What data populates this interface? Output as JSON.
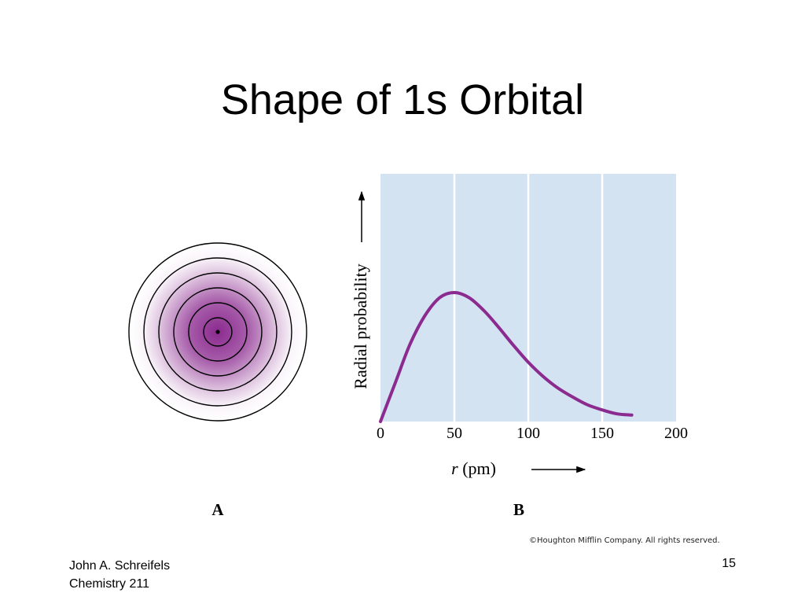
{
  "slide": {
    "title": "Shape of 1s Orbital",
    "copyright": "©Houghton Mifflin Company. All rights reserved.",
    "footer_author": "John A. Schreifels",
    "footer_course": "Chemistry 211",
    "page_number": "15"
  },
  "figure_a": {
    "label": "A",
    "color": "#8b2a8f"
  },
  "chart_data": {
    "type": "line",
    "panel_label": "B",
    "ylabel": "Radial probability",
    "xlabel_var": "r",
    "xlabel_unit": "(pm)",
    "xlim": [
      0,
      200
    ],
    "ylim": [
      0,
      1
    ],
    "xticks": [
      "0",
      "50",
      "100",
      "150",
      "200"
    ],
    "grid": true,
    "colors": {
      "plot_bg": "#d4e3f2",
      "curve": "#8b2a8f"
    },
    "series": [
      {
        "x": [
          0,
          10,
          20,
          30,
          40,
          50,
          60,
          70,
          80,
          90,
          100,
          110,
          120,
          130,
          140,
          150,
          160,
          170
        ],
        "y": [
          0.0,
          0.3,
          0.6,
          0.82,
          0.96,
          1.0,
          0.96,
          0.86,
          0.73,
          0.59,
          0.46,
          0.35,
          0.26,
          0.19,
          0.13,
          0.09,
          0.06,
          0.05
        ]
      }
    ]
  }
}
